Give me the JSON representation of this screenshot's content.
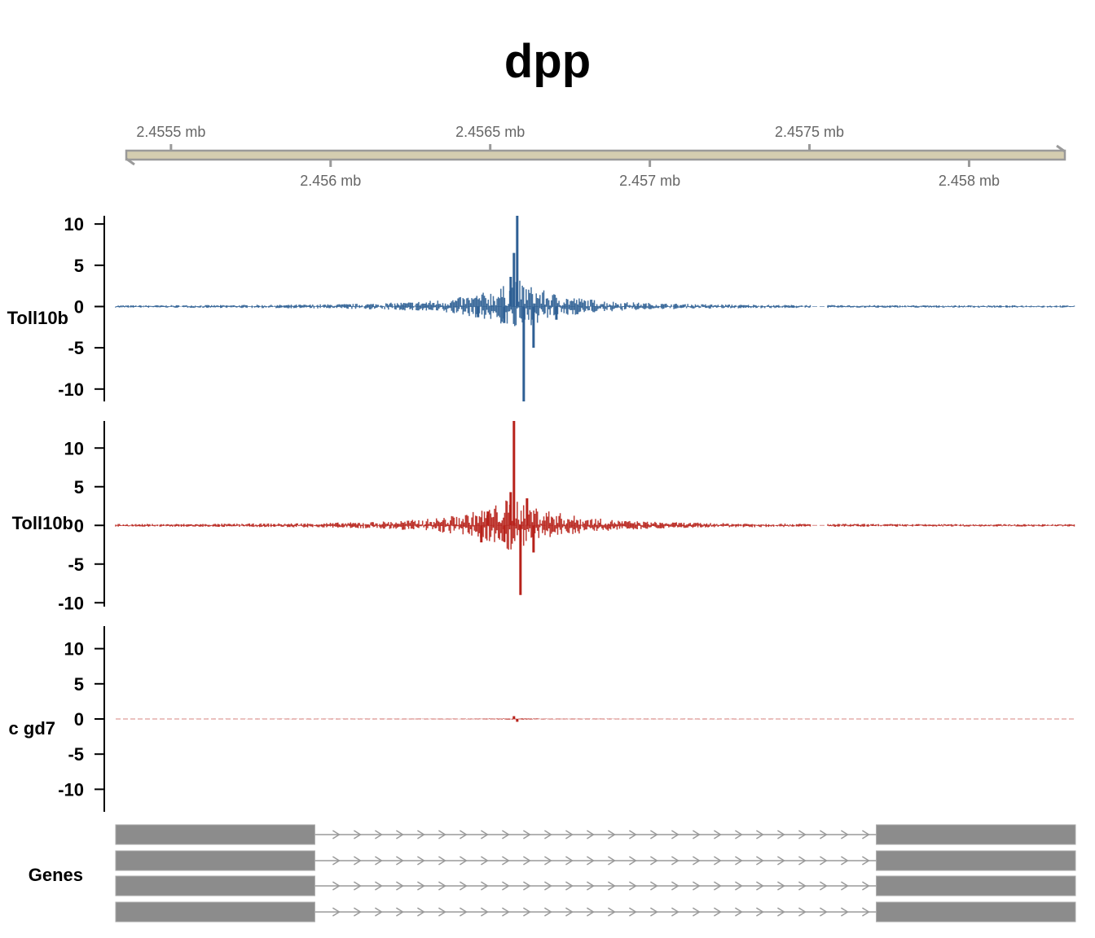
{
  "chart_data": {
    "type": "genome-track",
    "title": "dpp",
    "genome_axis": {
      "unit": "mb",
      "range": [
        2.45536,
        2.4583
      ],
      "ticks_above": [
        {
          "value": 2.4555,
          "label": "2.4555 mb"
        },
        {
          "value": 2.4565,
          "label": "2.4565 mb"
        },
        {
          "value": 2.4575,
          "label": "2.4575 mb"
        }
      ],
      "ticks_below": [
        {
          "value": 2.456,
          "label": "2.456 mb"
        },
        {
          "value": 2.457,
          "label": "2.457 mb"
        },
        {
          "value": 2.458,
          "label": "2.458 mb"
        }
      ]
    },
    "tracks": [
      {
        "name": "Toll10b",
        "color": "#2e5f94",
        "ylim": [
          -11.5,
          11
        ],
        "yticks": [
          {
            "value": 10,
            "label": "10"
          },
          {
            "value": 5,
            "label": "5"
          },
          {
            "value": 0,
            "label": "0"
          },
          {
            "value": -5,
            "label": "-5"
          },
          {
            "value": -10,
            "label": "-10"
          }
        ],
        "peaks": [
          {
            "pos": 2.45659,
            "height": 11.0
          },
          {
            "pos": 2.45661,
            "height": -11.5
          },
          {
            "pos": 2.45658,
            "height": 6.5
          },
          {
            "pos": 2.45657,
            "height": 3.6
          },
          {
            "pos": 2.45655,
            "height": -2.0
          },
          {
            "pos": 2.45664,
            "height": -5.0
          },
          {
            "pos": 2.45647,
            "height": -1.3
          },
          {
            "pos": 2.45671,
            "height": -1.6
          }
        ]
      },
      {
        "name": "Toll10b",
        "color": "#b7211a",
        "ylim": [
          -10.5,
          13.5
        ],
        "yticks": [
          {
            "value": 10,
            "label": "10"
          },
          {
            "value": 5,
            "label": "5"
          },
          {
            "value": 0,
            "label": "0"
          },
          {
            "value": -5,
            "label": "-5"
          },
          {
            "value": -10,
            "label": "-10"
          }
        ],
        "peaks": [
          {
            "pos": 2.45658,
            "height": 13.5
          },
          {
            "pos": 2.4566,
            "height": -9.0
          },
          {
            "pos": 2.45657,
            "height": 4.3
          },
          {
            "pos": 2.45662,
            "height": 3.5
          },
          {
            "pos": 2.4565,
            "height": 1.8
          },
          {
            "pos": 2.45655,
            "height": -2.1
          },
          {
            "pos": 2.45664,
            "height": -3.5
          },
          {
            "pos": 2.45648,
            "height": -2.2
          }
        ]
      },
      {
        "name": "c gd7",
        "color": "#b7211a",
        "ylim": [
          -13.2,
          13.2
        ],
        "yticks": [
          {
            "value": 10,
            "label": "10"
          },
          {
            "value": 5,
            "label": "5"
          },
          {
            "value": 0,
            "label": "0"
          },
          {
            "value": -5,
            "label": "-5"
          },
          {
            "value": -10,
            "label": "-10"
          }
        ],
        "peaks": [
          {
            "pos": 2.45658,
            "height": 0.4
          },
          {
            "pos": 2.45659,
            "height": -0.4
          }
        ]
      }
    ],
    "coverage_gaps": [
      [
        2.45749,
        2.45754
      ]
    ],
    "genes": {
      "label": "Genes",
      "transcript_count": 4,
      "exons": [
        [
          2.45536,
          2.45597
        ],
        [
          2.45769,
          2.4583
        ]
      ],
      "intron": [
        2.45597,
        2.45769
      ],
      "exon_color": "#8c8c8c",
      "intron_color": "#9a9a9a"
    }
  }
}
